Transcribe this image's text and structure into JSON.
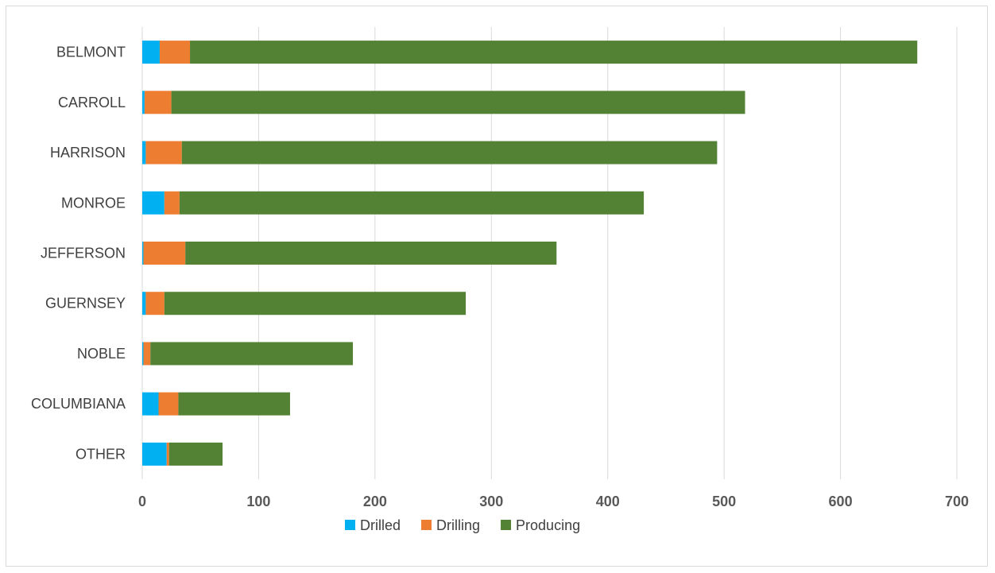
{
  "chart_data": {
    "type": "bar",
    "orientation": "horizontal",
    "stacked": true,
    "title": "",
    "xlabel": "",
    "ylabel": "",
    "categories": [
      "BELMONT",
      "CARROLL",
      "HARRISON",
      "MONROE",
      "JEFFERSON",
      "GUERNSEY",
      "NOBLE",
      "COLUMBIANA",
      "OTHER"
    ],
    "series": [
      {
        "name": "Drilled",
        "color": "#00b0f0",
        "values": [
          15,
          2,
          3,
          19,
          1,
          3,
          1,
          14,
          21
        ]
      },
      {
        "name": "Drilling",
        "color": "#ed7d31",
        "values": [
          26,
          23,
          31,
          13,
          36,
          16,
          6,
          17,
          2
        ]
      },
      {
        "name": "Producing",
        "color": "#548235",
        "values": [
          625,
          493,
          460,
          399,
          319,
          259,
          174,
          96,
          46
        ]
      }
    ],
    "xlim": [
      0,
      700
    ],
    "xticks": [
      "0",
      "100",
      "200",
      "300",
      "400",
      "500",
      "600",
      "700"
    ],
    "grid": "vertical",
    "legend_position": "bottom"
  }
}
